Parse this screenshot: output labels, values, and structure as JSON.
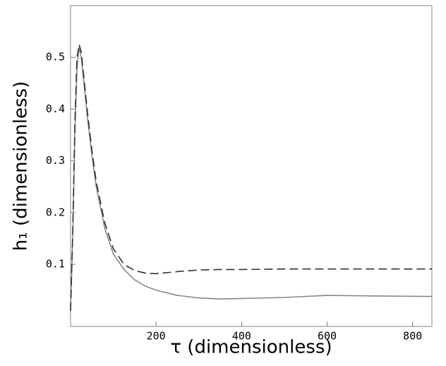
{
  "chart_data": {
    "type": "line",
    "xlabel": "τ (dimensionless)",
    "ylabel": "h₁ (dimensionless)",
    "x": [
      0,
      5,
      10,
      15,
      20,
      25,
      30,
      40,
      50,
      60,
      80,
      100,
      125,
      150,
      175,
      200,
      250,
      300,
      350,
      400,
      500,
      600,
      700,
      845
    ],
    "series": [
      {
        "color": "#888888",
        "dashed": false,
        "values": [
          0.01,
          0.15,
          0.35,
          0.48,
          0.52,
          0.5,
          0.46,
          0.38,
          0.31,
          0.25,
          0.17,
          0.12,
          0.09,
          0.07,
          0.058,
          0.05,
          0.04,
          0.035,
          0.033,
          0.034,
          0.036,
          0.04,
          0.039,
          0.038
        ]
      },
      {
        "color": "#333333",
        "dashed": true,
        "values": [
          0.01,
          0.16,
          0.37,
          0.5,
          0.525,
          0.51,
          0.47,
          0.39,
          0.32,
          0.26,
          0.18,
          0.13,
          0.1,
          0.088,
          0.083,
          0.082,
          0.086,
          0.089,
          0.09,
          0.09,
          0.091,
          0.091,
          0.091,
          0.091
        ]
      }
    ],
    "xlim": [
      0,
      845
    ],
    "xticks": [
      200,
      400,
      600,
      800
    ],
    "ylim": [
      -0.02,
      0.6
    ],
    "yticks": [
      0.1,
      0.2,
      0.3,
      0.4,
      0.5
    ]
  }
}
